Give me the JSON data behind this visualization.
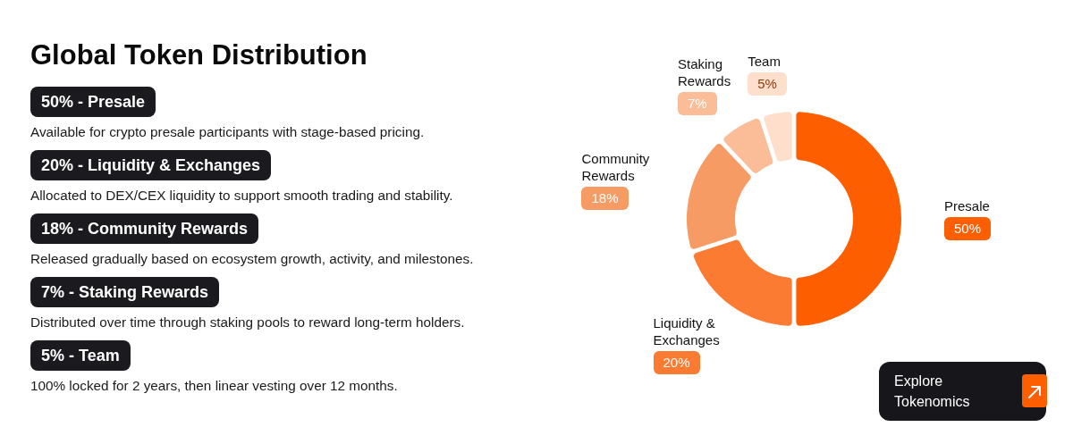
{
  "chart_data": {
    "type": "donut",
    "title": "Global Token Distribution",
    "categories": [
      "Presale",
      "Liquidity & Exchanges",
      "Community Rewards",
      "Staking Rewards",
      "Team"
    ],
    "values": [
      50,
      20,
      18,
      7,
      5
    ],
    "colors": [
      "#fd5f00",
      "#fa7b31",
      "#f79b65",
      "#fabd98",
      "#fddfcc"
    ],
    "value_labels": [
      "50%",
      "20%",
      "18%",
      "7%",
      "5%"
    ],
    "annotations": [
      "50% - Presale",
      "Available for crypto presale participants with stage-based pricing.",
      "20% - Liquidity & Exchanges",
      "Allocated to DEX/CEX liquidity to support smooth trading and stability.",
      "18% - Community Rewards",
      "Released gradually based on ecosystem growth, activity, and milestones.",
      "7% - Staking Rewards",
      "Distributed over time through staking pools to reward long-term holders.",
      "5% - Team",
      "100% locked for 2 years, then linear vesting over 12 months.",
      "Explore Tokenomics"
    ]
  }
}
